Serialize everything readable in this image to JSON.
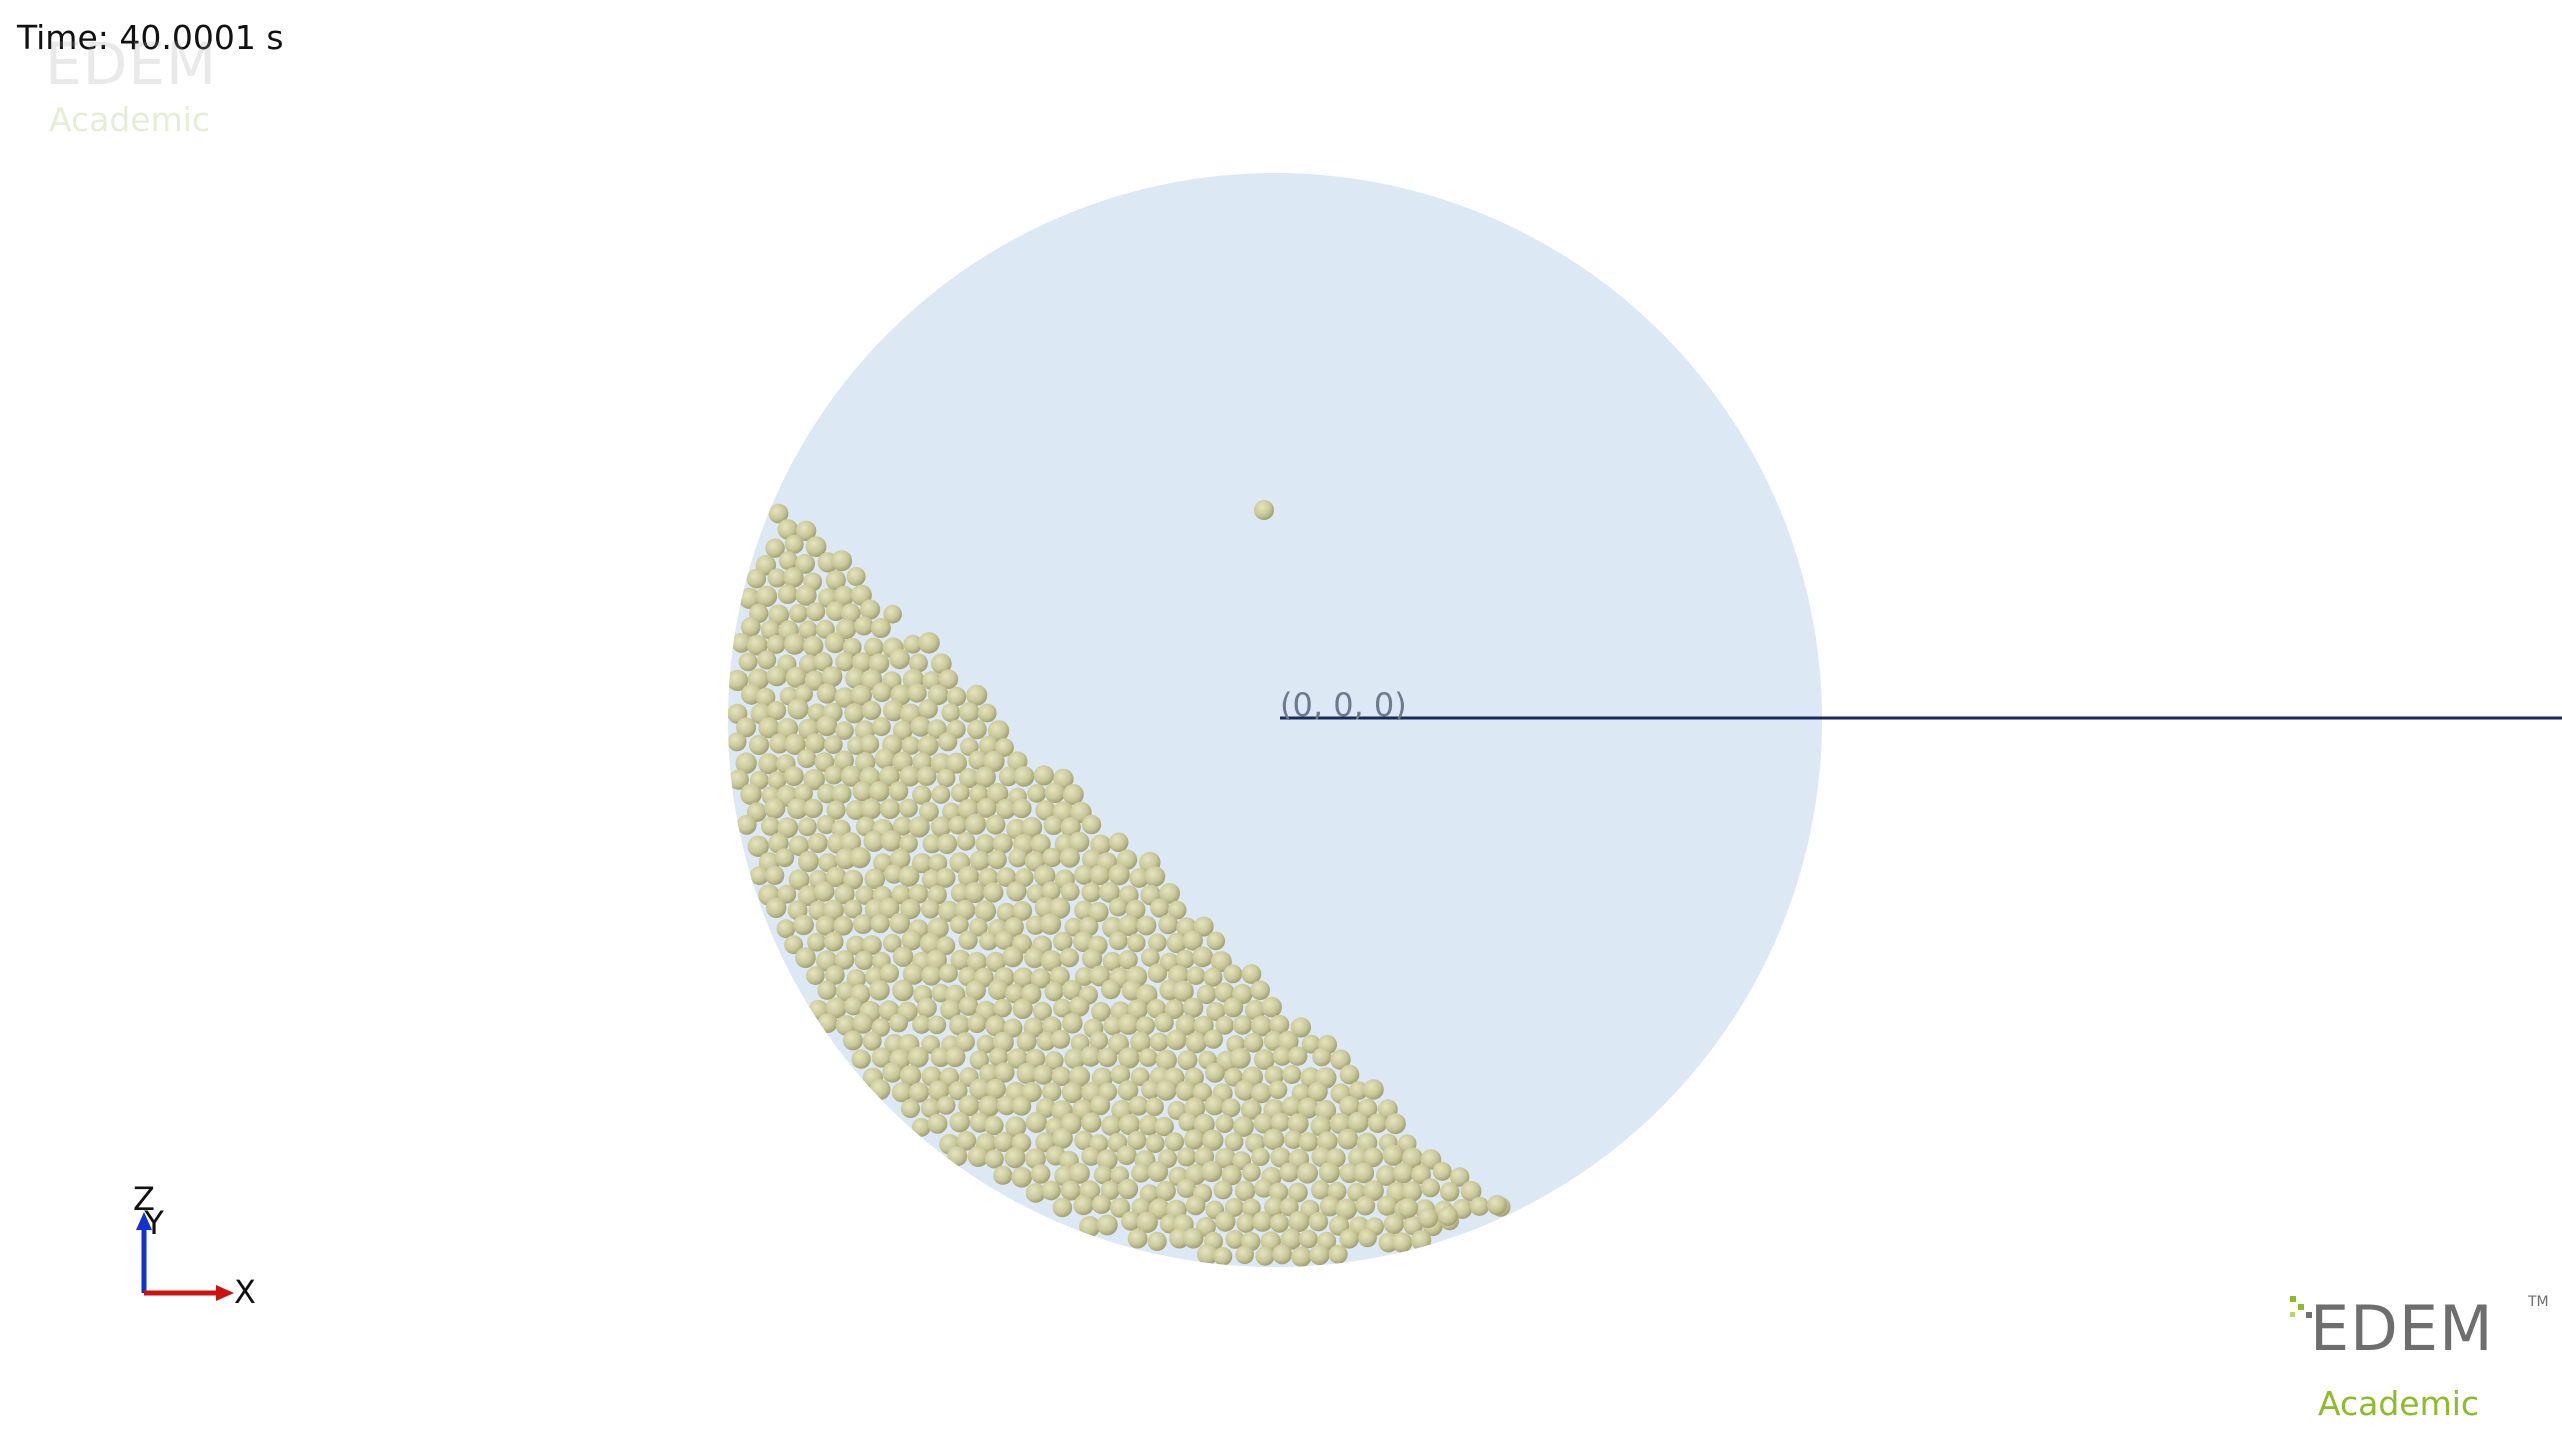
{
  "time_label": "Time: 40.0001 s",
  "origin_label": "(0, 0, 0)",
  "axes": {
    "x": "X",
    "y": "Y",
    "z": "Z"
  },
  "watermark": {
    "brand": "EDEM",
    "trademark": "TM",
    "edition": "Academic"
  },
  "colors": {
    "background": "#ffffff",
    "drum": "#dce8f3",
    "particle": "#c8c79a",
    "particle_shadow": "#9c9a6c",
    "axis_line": "#1a2a5c",
    "x_axis": "#cc1111",
    "z_axis": "#1133cc",
    "brand_green": "#8dbb2a"
  }
}
